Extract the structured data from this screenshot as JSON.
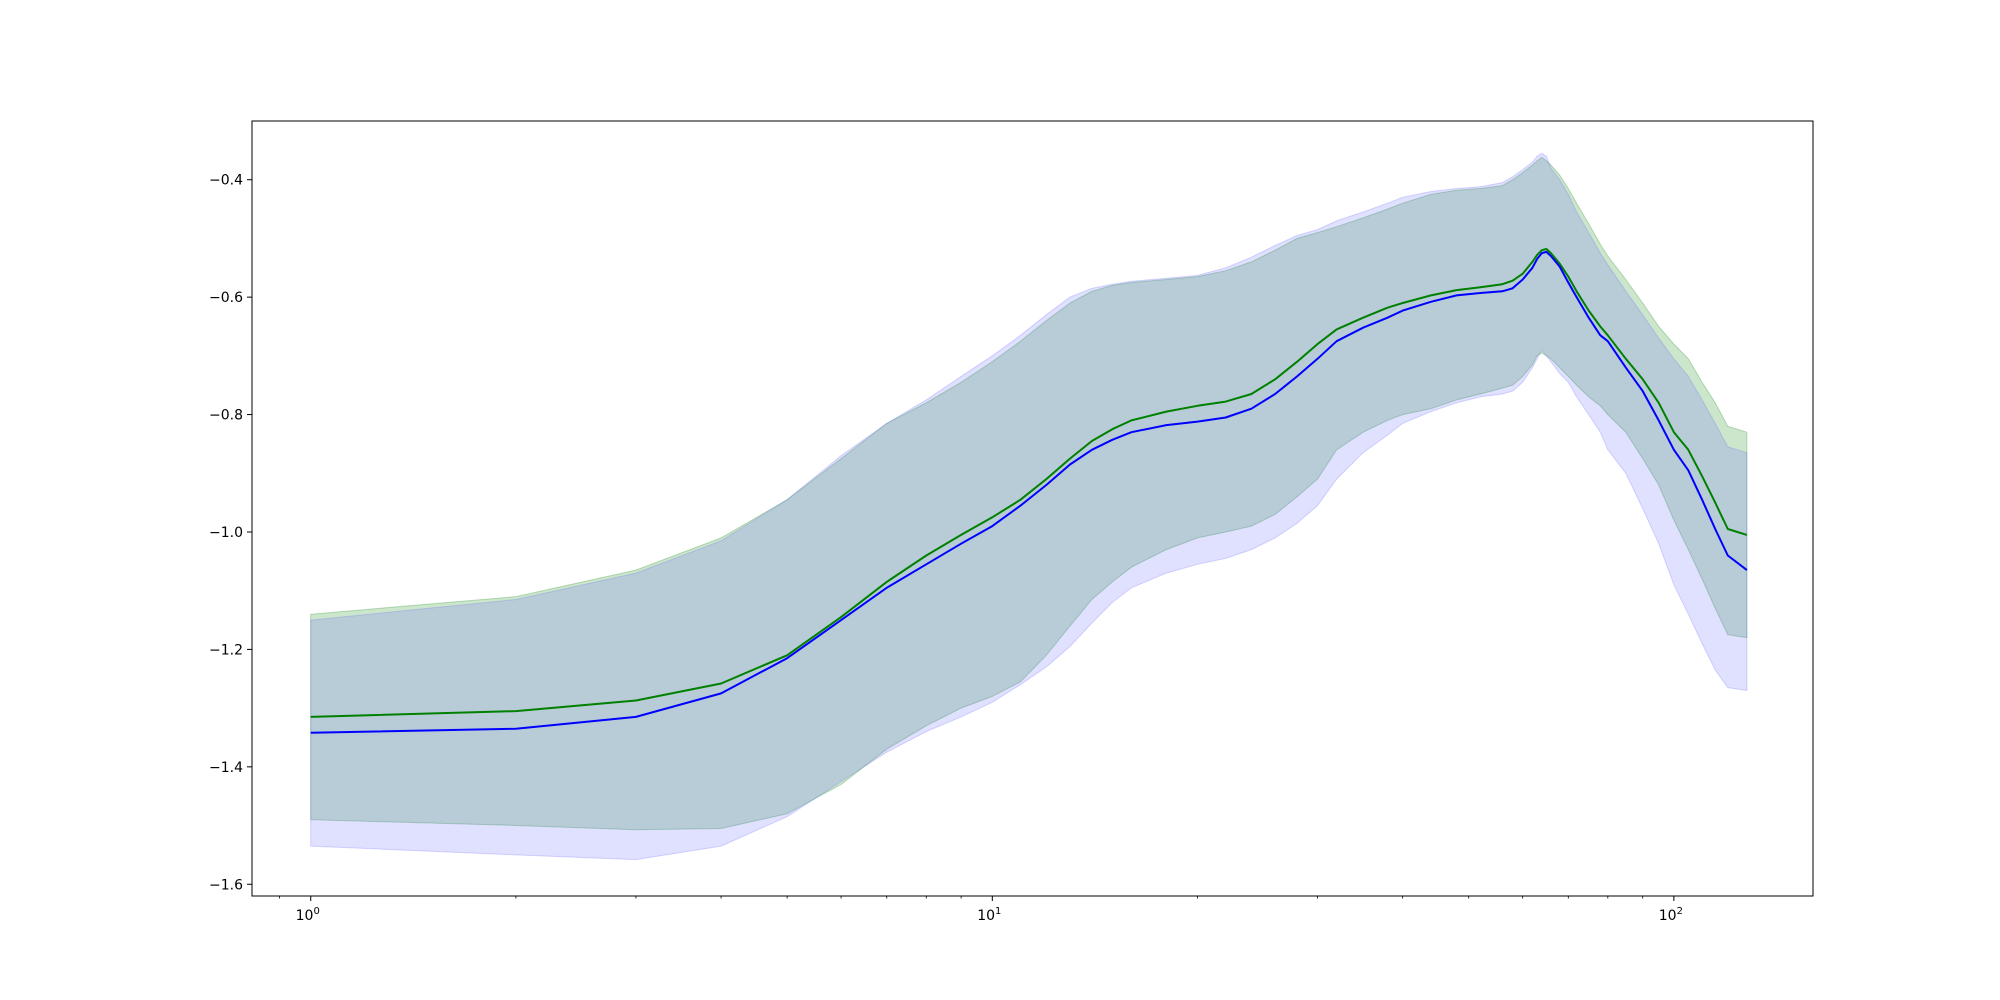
{
  "chart_data": {
    "type": "line",
    "title": "",
    "xlabel": "",
    "ylabel": "",
    "x_scale": "log",
    "xlim": [
      0.82,
      160
    ],
    "ylim": [
      -1.62,
      -0.3
    ],
    "grid": false,
    "legend": "none",
    "x_ticks": [
      {
        "value": 1,
        "base": "10",
        "exp": "0"
      },
      {
        "value": 10,
        "base": "10",
        "exp": "1"
      },
      {
        "value": 100,
        "base": "10",
        "exp": "2"
      }
    ],
    "y_ticks": [
      {
        "value": -1.6,
        "label": "−1.6"
      },
      {
        "value": -1.4,
        "label": "−1.4"
      },
      {
        "value": -1.2,
        "label": "−1.2"
      },
      {
        "value": -1.0,
        "label": "−1.0"
      },
      {
        "value": -0.8,
        "label": "−0.8"
      },
      {
        "value": -0.6,
        "label": "−0.6"
      },
      {
        "value": -0.4,
        "label": "−0.4"
      }
    ],
    "x": [
      1,
      2,
      3,
      4,
      5,
      6,
      7,
      8,
      9,
      10,
      11,
      12,
      13,
      14,
      15,
      16,
      18,
      20,
      22,
      24,
      26,
      28,
      30,
      32,
      35,
      38,
      40,
      44,
      48,
      52,
      56,
      58,
      60,
      62,
      63,
      64,
      65,
      66,
      68,
      70,
      72,
      75,
      78,
      80,
      85,
      90,
      95,
      100,
      105,
      110,
      115,
      120,
      128
    ],
    "series": [
      {
        "color": "#008000",
        "band_color": "#008000",
        "mean": [
          -1.315,
          -1.305,
          -1.287,
          -1.258,
          -1.21,
          -1.145,
          -1.085,
          -1.04,
          -1.005,
          -0.975,
          -0.945,
          -0.91,
          -0.875,
          -0.845,
          -0.825,
          -0.81,
          -0.795,
          -0.785,
          -0.778,
          -0.765,
          -0.74,
          -0.71,
          -0.68,
          -0.655,
          -0.635,
          -0.618,
          -0.61,
          -0.597,
          -0.588,
          -0.583,
          -0.578,
          -0.572,
          -0.56,
          -0.54,
          -0.528,
          -0.52,
          -0.518,
          -0.525,
          -0.543,
          -0.565,
          -0.59,
          -0.623,
          -0.65,
          -0.665,
          -0.705,
          -0.74,
          -0.78,
          -0.83,
          -0.86,
          -0.905,
          -0.95,
          -0.995,
          -1.005
        ],
        "upper": [
          -1.14,
          -1.11,
          -1.065,
          -1.01,
          -0.945,
          -0.875,
          -0.815,
          -0.78,
          -0.745,
          -0.71,
          -0.675,
          -0.64,
          -0.61,
          -0.59,
          -0.58,
          -0.575,
          -0.57,
          -0.565,
          -0.555,
          -0.54,
          -0.52,
          -0.5,
          -0.49,
          -0.48,
          -0.465,
          -0.45,
          -0.44,
          -0.425,
          -0.418,
          -0.415,
          -0.41,
          -0.4,
          -0.388,
          -0.375,
          -0.368,
          -0.362,
          -0.368,
          -0.375,
          -0.392,
          -0.415,
          -0.44,
          -0.475,
          -0.51,
          -0.53,
          -0.57,
          -0.61,
          -0.65,
          -0.68,
          -0.705,
          -0.745,
          -0.78,
          -0.82,
          -0.83
        ],
        "lower": [
          -1.49,
          -1.5,
          -1.507,
          -1.505,
          -1.48,
          -1.43,
          -1.37,
          -1.33,
          -1.3,
          -1.28,
          -1.255,
          -1.21,
          -1.16,
          -1.115,
          -1.085,
          -1.06,
          -1.03,
          -1.01,
          -1.0,
          -0.99,
          -0.97,
          -0.94,
          -0.91,
          -0.86,
          -0.83,
          -0.81,
          -0.8,
          -0.79,
          -0.775,
          -0.765,
          -0.755,
          -0.75,
          -0.735,
          -0.715,
          -0.7,
          -0.695,
          -0.7,
          -0.705,
          -0.72,
          -0.735,
          -0.75,
          -0.77,
          -0.785,
          -0.8,
          -0.83,
          -0.875,
          -0.92,
          -0.98,
          -1.03,
          -1.08,
          -1.13,
          -1.175,
          -1.18
        ]
      },
      {
        "color": "#0000ff",
        "band_color": "#6666ff",
        "mean": [
          -1.342,
          -1.335,
          -1.315,
          -1.275,
          -1.215,
          -1.15,
          -1.095,
          -1.055,
          -1.02,
          -0.99,
          -0.955,
          -0.92,
          -0.885,
          -0.86,
          -0.843,
          -0.83,
          -0.818,
          -0.812,
          -0.805,
          -0.79,
          -0.765,
          -0.735,
          -0.705,
          -0.675,
          -0.652,
          -0.635,
          -0.623,
          -0.608,
          -0.597,
          -0.593,
          -0.59,
          -0.585,
          -0.57,
          -0.55,
          -0.535,
          -0.525,
          -0.523,
          -0.53,
          -0.548,
          -0.575,
          -0.6,
          -0.635,
          -0.665,
          -0.675,
          -0.72,
          -0.76,
          -0.81,
          -0.86,
          -0.895,
          -0.945,
          -0.995,
          -1.04,
          -1.065
        ],
        "upper": [
          -1.15,
          -1.115,
          -1.07,
          -1.015,
          -0.945,
          -0.87,
          -0.815,
          -0.775,
          -0.735,
          -0.7,
          -0.665,
          -0.63,
          -0.6,
          -0.585,
          -0.578,
          -0.573,
          -0.568,
          -0.563,
          -0.55,
          -0.532,
          -0.512,
          -0.495,
          -0.485,
          -0.47,
          -0.455,
          -0.44,
          -0.43,
          -0.42,
          -0.415,
          -0.412,
          -0.405,
          -0.395,
          -0.383,
          -0.37,
          -0.36,
          -0.355,
          -0.36,
          -0.38,
          -0.4,
          -0.425,
          -0.455,
          -0.49,
          -0.525,
          -0.545,
          -0.59,
          -0.63,
          -0.67,
          -0.705,
          -0.735,
          -0.775,
          -0.815,
          -0.855,
          -0.865
        ],
        "lower": [
          -1.535,
          -1.55,
          -1.558,
          -1.535,
          -1.485,
          -1.425,
          -1.375,
          -1.34,
          -1.315,
          -1.29,
          -1.26,
          -1.23,
          -1.195,
          -1.155,
          -1.12,
          -1.095,
          -1.07,
          -1.055,
          -1.045,
          -1.03,
          -1.01,
          -0.985,
          -0.955,
          -0.91,
          -0.865,
          -0.835,
          -0.815,
          -0.795,
          -0.78,
          -0.77,
          -0.765,
          -0.76,
          -0.745,
          -0.72,
          -0.705,
          -0.69,
          -0.7,
          -0.71,
          -0.73,
          -0.745,
          -0.77,
          -0.8,
          -0.83,
          -0.86,
          -0.9,
          -0.96,
          -1.02,
          -1.09,
          -1.14,
          -1.19,
          -1.235,
          -1.265,
          -1.27
        ]
      }
    ]
  }
}
